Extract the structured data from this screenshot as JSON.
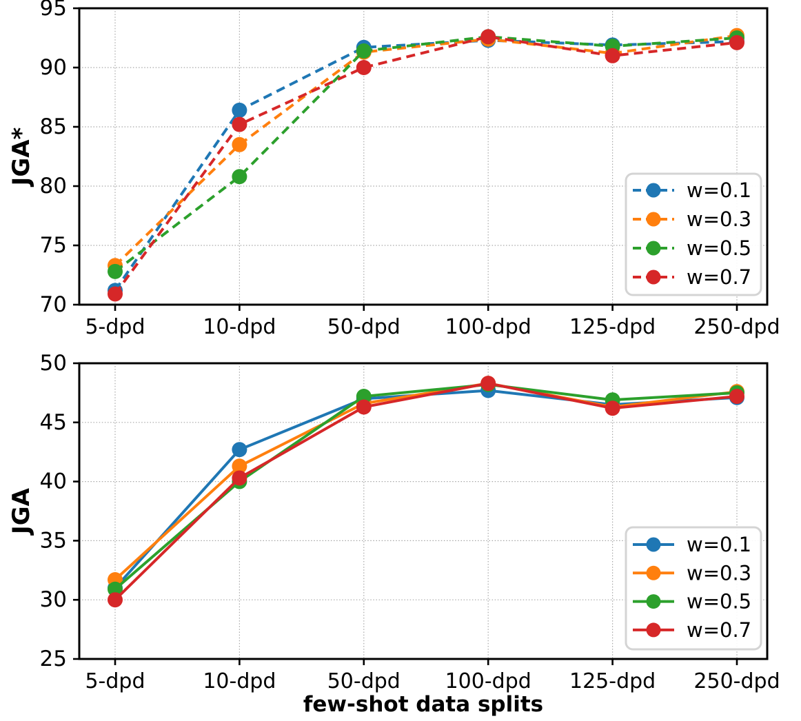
{
  "figure": {
    "background": "#ffffff",
    "x_axis_title": "few-shot data splits"
  },
  "chart_data": [
    {
      "type": "line",
      "line_style": "dashed",
      "title": "",
      "xlabel": "",
      "ylabel": "JGA*",
      "categories": [
        "5-dpd",
        "10-dpd",
        "50-dpd",
        "100-dpd",
        "125-dpd",
        "250-dpd"
      ],
      "ylim": [
        70,
        95
      ],
      "yticks": [
        70,
        75,
        80,
        85,
        90,
        95
      ],
      "grid": true,
      "legend_position": "center-right",
      "series": [
        {
          "name": "w=0.1",
          "color": "#1f77b4",
          "values": [
            71.2,
            86.4,
            91.7,
            92.3,
            91.9,
            92.2
          ]
        },
        {
          "name": "w=0.3",
          "color": "#ff7f0e",
          "values": [
            73.3,
            83.5,
            91.3,
            92.4,
            91.2,
            92.7
          ]
        },
        {
          "name": "w=0.5",
          "color": "#2ca02c",
          "values": [
            72.8,
            80.8,
            91.4,
            92.6,
            91.8,
            92.5
          ]
        },
        {
          "name": "w=0.7",
          "color": "#d62728",
          "values": [
            70.9,
            85.2,
            90.0,
            92.6,
            91.0,
            92.1
          ]
        }
      ]
    },
    {
      "type": "line",
      "line_style": "solid",
      "title": "",
      "xlabel": "few-shot data splits",
      "ylabel": "JGA",
      "categories": [
        "5-dpd",
        "10-dpd",
        "50-dpd",
        "100-dpd",
        "125-dpd",
        "250-dpd"
      ],
      "ylim": [
        25,
        50
      ],
      "yticks": [
        25,
        30,
        35,
        40,
        45,
        50
      ],
      "grid": true,
      "legend_position": "lower-right",
      "series": [
        {
          "name": "w=0.1",
          "color": "#1f77b4",
          "values": [
            31.0,
            42.7,
            47.0,
            47.7,
            46.5,
            47.1
          ]
        },
        {
          "name": "w=0.3",
          "color": "#ff7f0e",
          "values": [
            31.7,
            41.3,
            46.6,
            48.3,
            46.3,
            47.6
          ]
        },
        {
          "name": "w=0.5",
          "color": "#2ca02c",
          "values": [
            30.9,
            40.0,
            47.2,
            48.2,
            46.9,
            47.5
          ]
        },
        {
          "name": "w=0.7",
          "color": "#d62728",
          "values": [
            30.0,
            40.3,
            46.3,
            48.3,
            46.2,
            47.2
          ]
        }
      ]
    }
  ]
}
